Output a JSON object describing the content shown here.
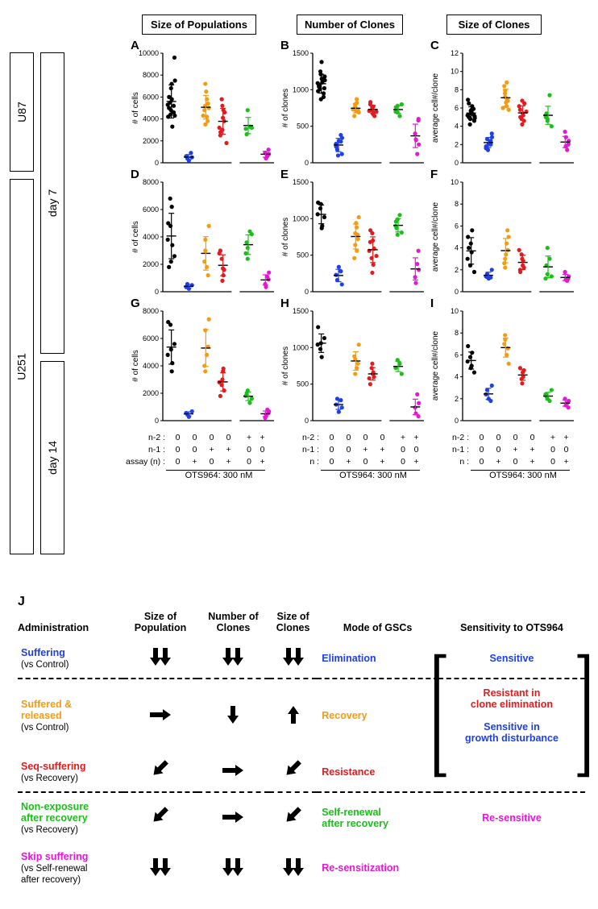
{
  "columns": [
    "Size of Populations",
    "Number of Clones",
    "Size of Clones"
  ],
  "cell_lines": {
    "u87": "U87",
    "u251": "U251"
  },
  "timepoints": {
    "d7": "day 7",
    "d14": "day 14"
  },
  "drug_caption": "OTS964: 300 nM",
  "series_colors": {
    "black": "#000000",
    "blue": "#1e40e6",
    "orange": "#f39c12",
    "red": "#e41a1c",
    "green": "#1abf1a",
    "magenta": "#e815d8"
  },
  "condition_order": [
    "black",
    "blue",
    "orange",
    "red",
    "green",
    "magenta"
  ],
  "xaxis_rows": [
    {
      "label": "n-2",
      "vals": [
        "0",
        "0",
        "0",
        "0",
        "+",
        "+"
      ]
    },
    {
      "label": "n-1",
      "vals": [
        "0",
        "0",
        "+",
        "+",
        "0",
        "0"
      ]
    },
    {
      "label": "assay (n)",
      "vals": [
        "0",
        "+",
        "0",
        "+",
        "0",
        "+"
      ]
    }
  ],
  "xaxis_rows_short": [
    {
      "label": "n-2",
      "vals": [
        "0",
        "0",
        "0",
        "0",
        "+",
        "+"
      ]
    },
    {
      "label": "n-1",
      "vals": [
        "0",
        "0",
        "+",
        "+",
        "0",
        "0"
      ]
    },
    {
      "label": "n",
      "vals": [
        "0",
        "+",
        "0",
        "+",
        "0",
        "+"
      ]
    }
  ],
  "charts": {
    "A": {
      "ylabel": "# of cells",
      "ymax": 10000,
      "ytick": 2000,
      "data": {
        "black": [
          5300,
          9600,
          4200,
          5800,
          4400,
          6800,
          3300,
          5000,
          5500,
          7200,
          4300,
          4600,
          6000,
          7500,
          5200,
          4800
        ],
        "blue": [
          600,
          400,
          200,
          500,
          900
        ],
        "orange": [
          5400,
          3500,
          5000,
          7200,
          4200,
          4800,
          3800,
          6500,
          5800,
          5200,
          4300
        ],
        "red": [
          4800,
          3800,
          3000,
          2500,
          5800,
          4100,
          3200,
          2800,
          5200,
          1800,
          4600
        ],
        "green": [
          3100,
          4800,
          3200,
          3300,
          2600
        ],
        "magenta": [
          400,
          800,
          1200,
          900,
          600
        ]
      }
    },
    "B": {
      "ylabel": "# of clones",
      "ymax": 1500,
      "ytick": 500,
      "data": {
        "black": [
          1090,
          1020,
          980,
          1150,
          1250,
          870,
          1100,
          1060,
          1010,
          1380,
          1180,
          950,
          1040,
          1130,
          900,
          1210
        ],
        "blue": [
          260,
          180,
          300,
          120,
          380,
          220,
          340,
          290,
          100
        ],
        "orange": [
          720,
          760,
          690,
          800,
          870,
          640,
          700,
          710,
          820,
          770,
          730
        ],
        "red": [
          770,
          690,
          760,
          800,
          720,
          670,
          710,
          830,
          750,
          700,
          640
        ],
        "green": [
          700,
          780,
          800,
          640,
          730,
          690,
          760
        ],
        "magenta": [
          320,
          250,
          580,
          400,
          120,
          310,
          600
        ]
      }
    },
    "C": {
      "ylabel": "average cell#/clone",
      "ymax": 12,
      "ytick": 2,
      "data": {
        "black": [
          5.2,
          4.6,
          6.9,
          5.8,
          4.8,
          5.4,
          6.2,
          5.0,
          4.2,
          5.6,
          5.1,
          5.9,
          6.5,
          4.9,
          5.3,
          5.7
        ],
        "blue": [
          1.6,
          2.6,
          2.1,
          3.2,
          2.0,
          1.8,
          2.8,
          2.4,
          1.4
        ],
        "orange": [
          6.8,
          7.9,
          5.8,
          7.2,
          6.2,
          8.4,
          7.0,
          6.6,
          8.8,
          7.6,
          6.0
        ],
        "red": [
          5.2,
          4.6,
          6.8,
          5.8,
          4.8,
          5.4,
          6.2,
          5.0,
          4.2,
          5.6,
          6.5
        ],
        "green": [
          5.2,
          4.6,
          4.0,
          7.4,
          5.4,
          4.8,
          5.0
        ],
        "magenta": [
          1.8,
          2.4,
          2.0,
          3.4,
          1.4,
          2.8,
          2.1
        ]
      }
    },
    "D": {
      "ylabel": "# of cells",
      "ymax": 8000,
      "ytick": 2000,
      "data": {
        "black": [
          3800,
          2600,
          5000,
          6200,
          4800,
          2200,
          3400,
          1800,
          6800
        ],
        "blue": [
          340,
          560,
          220,
          480
        ],
        "orange": [
          1200,
          3800,
          4800,
          3000,
          1800,
          2200
        ],
        "red": [
          1200,
          1600,
          800,
          3000,
          2400,
          1700,
          2800
        ],
        "green": [
          2800,
          2400,
          4200,
          4400,
          3600,
          3200
        ],
        "magenta": [
          340,
          1400,
          900,
          560,
          1100
        ]
      }
    },
    "E": {
      "ylabel": "# of clones",
      "ymax": 1500,
      "ytick": 500,
      "data": {
        "black": [
          1060,
          1020,
          1220,
          870,
          1140,
          1200,
          900
        ],
        "blue": [
          230,
          160,
          340,
          100,
          280
        ],
        "orange": [
          720,
          800,
          1020,
          640,
          880,
          460,
          780,
          940,
          560
        ],
        "red": [
          370,
          590,
          800,
          680,
          460,
          700,
          560,
          840,
          260,
          490
        ],
        "green": [
          900,
          990,
          810,
          1050,
          870,
          780,
          960
        ],
        "magenta": [
          120,
          300,
          560,
          200,
          380
        ]
      }
    },
    "F": {
      "ylabel": "average cell#/clone",
      "ymax": 10,
      "ytick": 2,
      "data": {
        "black": [
          3.0,
          1.8,
          5.0,
          3.6,
          2.4,
          4.4,
          5.6,
          4.0
        ],
        "blue": [
          1.4,
          1.6,
          1.2,
          2.0,
          1.3
        ],
        "orange": [
          3.8,
          2.2,
          5.0,
          3.0,
          4.4,
          2.6,
          5.6,
          3.4
        ],
        "red": [
          2.8,
          2.2,
          3.0,
          2.0,
          3.4,
          2.4,
          3.8,
          1.8
        ],
        "green": [
          1.2,
          4.0,
          1.4,
          3.0,
          2.4,
          1.6
        ],
        "magenta": [
          1.1,
          1.4,
          1.2,
          1.8,
          1.0
        ]
      }
    },
    "G": {
      "ylabel": "# of cells",
      "ymax": 8000,
      "ytick": 2000,
      "data": {
        "black": [
          4800,
          5600,
          7200,
          3600,
          7000,
          5200,
          4200
        ],
        "blue": [
          560,
          460,
          280,
          680
        ],
        "orange": [
          5400,
          6600,
          7400,
          3600,
          4800,
          4000
        ],
        "red": [
          3800,
          2200,
          3000,
          1800,
          2600,
          3600,
          2800
        ],
        "green": [
          1800,
          2200,
          1600,
          1300,
          2000
        ],
        "magenta": [
          340,
          680,
          560,
          200,
          800,
          440
        ]
      }
    },
    "H": {
      "ylabel": "# of clones",
      "ymax": 1500,
      "ytick": 500,
      "data": {
        "black": [
          1040,
          1130,
          1280,
          870,
          980,
          1060
        ],
        "blue": [
          220,
          300,
          120,
          180,
          280
        ],
        "orange": [
          780,
          840,
          1040,
          640,
          720,
          880
        ],
        "red": [
          660,
          600,
          780,
          500,
          720,
          640,
          580
        ],
        "green": [
          720,
          830,
          640,
          780
        ],
        "magenta": [
          100,
          240,
          60,
          180,
          360
        ]
      }
    },
    "I": {
      "ylabel": "average cell#/clone",
      "ymax": 10,
      "ytick": 2,
      "data": {
        "black": [
          5.4,
          4.4,
          6.8,
          5.0,
          5.8,
          4.8,
          6.2
        ],
        "blue": [
          2.4,
          2.8,
          2.0,
          3.2,
          1.8
        ],
        "orange": [
          6.6,
          7.4,
          5.2,
          7.8,
          6.0,
          7.0
        ],
        "red": [
          4.0,
          4.6,
          3.4,
          4.8,
          3.8,
          4.4
        ],
        "green": [
          2.4,
          2.0,
          2.8,
          1.8,
          2.2
        ],
        "magenta": [
          1.4,
          1.8,
          1.2,
          2.0,
          1.6
        ]
      }
    }
  },
  "panelJ": {
    "letter": "J",
    "headers": [
      "Administration",
      "Size of\nPopulation",
      "Number of\nClones",
      "Size of\nClones",
      "Mode of GSCs",
      "Sensitivity to OTS964"
    ],
    "rows": [
      {
        "name": "Suffering",
        "vs": "(vs Control)",
        "color": "blue",
        "arrows": [
          "dd",
          "dd",
          "dd"
        ],
        "mode": "Elimination",
        "sens": "Sensitive",
        "sens_color": "blue"
      },
      {
        "sep": true
      },
      {
        "name": "Suffered &\nreleased",
        "vs": "(vs Control)",
        "color": "orange",
        "arrows": [
          "right",
          "down",
          "up"
        ],
        "mode": "Recovery",
        "sens": "Resistant in\nclone elimination",
        "sens_color": "red",
        "bracket": "top"
      },
      {
        "name": "Seq-suffering",
        "vs": "(vs Recovery)",
        "color": "red",
        "arrows": [
          "diag",
          "right",
          "diag"
        ],
        "mode": "Resistance",
        "sens": "Sensitive in\ngrowth disturbance",
        "sens_color": "blue",
        "bracket": "bottom"
      },
      {
        "sep": true
      },
      {
        "name": "Non-exposure\nafter recovery",
        "vs": "(vs Recovery)",
        "color": "green",
        "arrows": [
          "diag",
          "right",
          "diag"
        ],
        "mode": "Self-renewal\nafter recovery",
        "sens": "",
        "sens_color": ""
      },
      {
        "name": "Skip suffering",
        "vs": "(vs Self-renewal\nafter recovery)",
        "color": "magenta",
        "arrows": [
          "dd",
          "dd",
          "dd"
        ],
        "mode": "Re-sensitization",
        "sens": "Re-sensitive",
        "sens_color": "magenta",
        "sens_span": "prev"
      }
    ]
  }
}
